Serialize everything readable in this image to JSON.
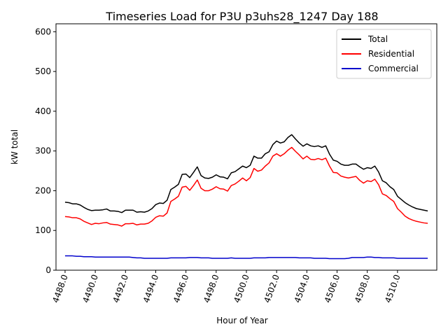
{
  "chart_data": {
    "type": "line",
    "title": "Timeseries Load for P3U p3uhs28_1247  Day 188",
    "xlabel": "Hour of Year",
    "ylabel": "kW total",
    "xlim": [
      4487.4,
      4512.6
    ],
    "ylim": [
      0,
      620
    ],
    "x_start": 4488.0,
    "x_step": 0.25,
    "x_ticks": [
      4488.0,
      4490.0,
      4492.0,
      4494.0,
      4496.0,
      4498.0,
      4500.0,
      4502.0,
      4504.0,
      4506.0,
      4508.0,
      4510.0
    ],
    "x_tick_labels": [
      "4488.0",
      "4490.0",
      "4492.0",
      "4494.0",
      "4496.0",
      "4498.0",
      "4500.0",
      "4502.0",
      "4504.0",
      "4506.0",
      "4508.0",
      "4510.0"
    ],
    "y_ticks": [
      0,
      100,
      200,
      300,
      400,
      500,
      600
    ],
    "y_tick_labels": [
      "0",
      "100",
      "200",
      "300",
      "400",
      "500",
      "600"
    ],
    "grid": false,
    "legend_position": "top-right",
    "series": [
      {
        "name": "Total",
        "color": "#000000",
        "values": [
          171,
          170,
          167,
          167,
          164,
          158,
          153,
          150,
          151,
          151,
          152,
          154,
          149,
          149,
          148,
          145,
          151,
          151,
          151,
          146,
          147,
          146,
          149,
          155,
          165,
          169,
          168,
          176,
          203,
          209,
          216,
          241,
          242,
          233,
          246,
          260,
          238,
          232,
          231,
          234,
          240,
          235,
          234,
          230,
          245,
          248,
          255,
          262,
          258,
          264,
          287,
          282,
          282,
          293,
          298,
          316,
          325,
          320,
          323,
          334,
          341,
          330,
          320,
          312,
          318,
          313,
          311,
          313,
          309,
          313,
          292,
          277,
          274,
          267,
          264,
          264,
          267,
          267,
          260,
          254,
          258,
          256,
          262,
          247,
          225,
          220,
          210,
          203,
          186,
          178,
          170,
          164,
          159,
          155,
          153,
          151,
          149
        ]
      },
      {
        "name": "Residential",
        "color": "#ff0000",
        "values": [
          135,
          134,
          132,
          132,
          129,
          123,
          119,
          115,
          118,
          117,
          119,
          120,
          116,
          115,
          114,
          111,
          117,
          117,
          118,
          114,
          116,
          116,
          118,
          124,
          133,
          137,
          136,
          144,
          173,
          179,
          186,
          209,
          211,
          201,
          213,
          227,
          206,
          200,
          200,
          204,
          210,
          205,
          204,
          199,
          213,
          217,
          224,
          232,
          225,
          233,
          256,
          249,
          252,
          262,
          270,
          287,
          293,
          287,
          293,
          302,
          309,
          299,
          290,
          280,
          287,
          279,
          278,
          281,
          278,
          282,
          262,
          246,
          245,
          237,
          234,
          232,
          234,
          236,
          226,
          219,
          225,
          223,
          229,
          215,
          192,
          188,
          180,
          173,
          155,
          146,
          136,
          130,
          126,
          123,
          121,
          119,
          118
        ]
      },
      {
        "name": "Commercial",
        "color": "#0000cc",
        "values": [
          36,
          36,
          36,
          35,
          35,
          34,
          34,
          34,
          33,
          33,
          33,
          33,
          33,
          33,
          33,
          33,
          33,
          33,
          32,
          31,
          31,
          30,
          30,
          30,
          30,
          30,
          30,
          30,
          31,
          31,
          31,
          31,
          31,
          32,
          32,
          32,
          31,
          31,
          31,
          30,
          30,
          30,
          30,
          30,
          31,
          30,
          30,
          30,
          30,
          30,
          31,
          31,
          31,
          31,
          32,
          32,
          32,
          32,
          32,
          32,
          32,
          32,
          31,
          31,
          31,
          31,
          30,
          30,
          30,
          30,
          29,
          29,
          29,
          29,
          29,
          30,
          32,
          32,
          32,
          32,
          33,
          33,
          32,
          32,
          31,
          31,
          31,
          31,
          30,
          30,
          30,
          30,
          30,
          30,
          30,
          30,
          30
        ]
      }
    ]
  }
}
